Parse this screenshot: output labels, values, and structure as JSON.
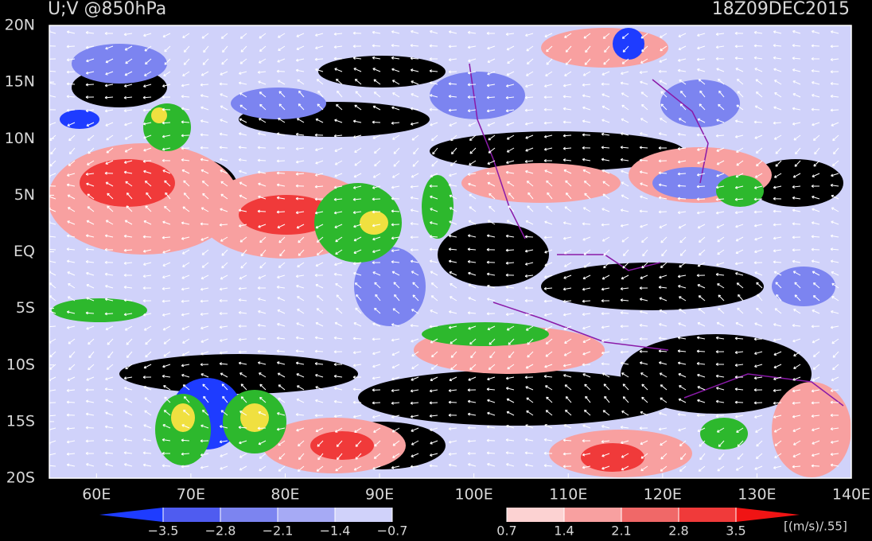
{
  "header": {
    "title": "U;V @850hPa",
    "time": "18Z09DEC2015"
  },
  "map": {
    "lon_range": [
      55,
      140
    ],
    "lat_range": [
      -20,
      20
    ],
    "lat_ticks": [
      {
        "value": 20,
        "label": "20N"
      },
      {
        "value": 15,
        "label": "15N"
      },
      {
        "value": 10,
        "label": "10N"
      },
      {
        "value": 5,
        "label": "5N"
      },
      {
        "value": 0,
        "label": "EQ"
      },
      {
        "value": -5,
        "label": "5S"
      },
      {
        "value": -10,
        "label": "10S"
      },
      {
        "value": -15,
        "label": "15S"
      },
      {
        "value": -20,
        "label": "20S"
      }
    ],
    "lon_ticks": [
      {
        "value": 60,
        "label": "60E"
      },
      {
        "value": 70,
        "label": "70E"
      },
      {
        "value": 80,
        "label": "80E"
      },
      {
        "value": 90,
        "label": "90E"
      },
      {
        "value": 100,
        "label": "100E"
      },
      {
        "value": 110,
        "label": "110E"
      },
      {
        "value": 120,
        "label": "120E"
      },
      {
        "value": 130,
        "label": "130E"
      },
      {
        "value": 140,
        "label": "140E"
      }
    ]
  },
  "colorbar": {
    "levels": [
      {
        "value": -3.5,
        "label": "−3.5"
      },
      {
        "value": -2.8,
        "label": "−2.8"
      },
      {
        "value": -2.1,
        "label": "−2.1"
      },
      {
        "value": -1.4,
        "label": "−1.4"
      },
      {
        "value": -0.7,
        "label": "−0.7"
      },
      0.7,
      1.4,
      2.1,
      2.8,
      3.5
    ],
    "colors": [
      "#1e3cff",
      "#4f5cf0",
      "#7c84f0",
      "#a6aaf5",
      "#d0d2fa",
      "#000000",
      "#fcd2d2",
      "#f8a0a0",
      "#f06868",
      "#f03a3a",
      "#f01414"
    ],
    "units": "[(m/s)/.55]"
  }
}
